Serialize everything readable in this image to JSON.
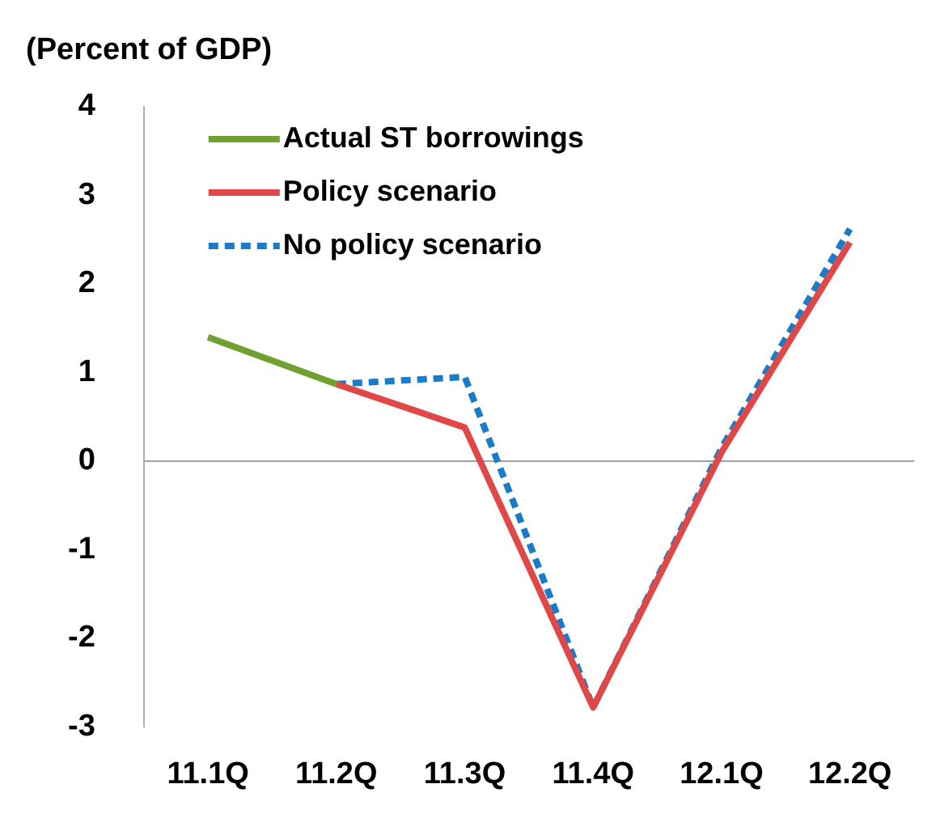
{
  "chart_data": {
    "type": "line",
    "ylabel": "(Percent of GDP)",
    "categories": [
      "11.1Q",
      "11.2Q",
      "11.3Q",
      "11.4Q",
      "12.1Q",
      "12.2Q"
    ],
    "series": [
      {
        "name": "Actual ST borrowings",
        "color": "#70a030",
        "values": [
          1.4,
          0.87,
          null,
          null,
          null,
          null
        ]
      },
      {
        "name": "Policy scenario",
        "color": "#e04848",
        "values": [
          null,
          0.87,
          0.38,
          -2.78,
          0.1,
          2.47
        ]
      },
      {
        "name": "No policy scenario",
        "color": "#1a7cc8",
        "line_style": "dashed",
        "values": [
          null,
          0.87,
          0.95,
          -2.78,
          0.15,
          2.62
        ]
      }
    ],
    "ylim": [
      -3,
      4
    ],
    "yticks": [
      -3,
      -2,
      -1,
      0,
      1,
      2,
      3,
      4
    ],
    "ref_lines": [
      {
        "axis": "y",
        "value": 0,
        "color": "#a0a0a0"
      }
    ],
    "grid": false,
    "legend": "top left",
    "marker": "none"
  }
}
